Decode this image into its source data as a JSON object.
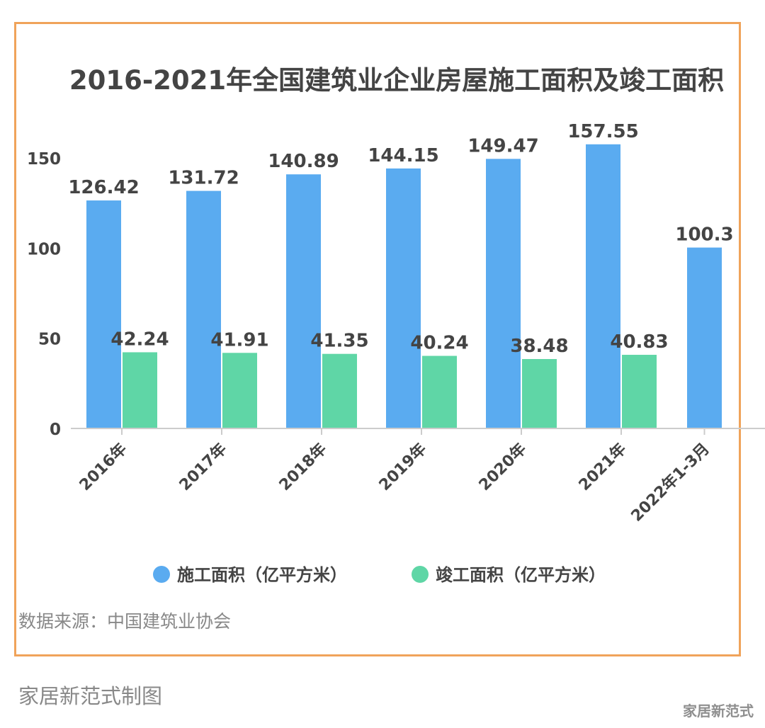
{
  "chart_data": {
    "type": "bar",
    "title": "2016-2021年全国建筑业企业房屋施工面积及竣工面积",
    "categories": [
      "2016年",
      "2017年",
      "2018年",
      "2019年",
      "2020年",
      "2021年",
      "2022年1-3月"
    ],
    "series": [
      {
        "name": "施工面积（亿平方米）",
        "color": "#5aabf0",
        "values": [
          126.42,
          131.72,
          140.89,
          144.15,
          149.47,
          157.55,
          100.3
        ],
        "labels": [
          "126.42",
          "131.72",
          "140.89",
          "144.15",
          "149.47",
          "157.55",
          "100.3"
        ]
      },
      {
        "name": "竣工面积（亿平方米）",
        "color": "#5fd6a6",
        "values": [
          42.24,
          41.91,
          41.35,
          40.24,
          38.48,
          40.83,
          null
        ],
        "labels": [
          "42.24",
          "41.91",
          "41.35",
          "40.24",
          "38.48",
          "40.83",
          ""
        ]
      }
    ],
    "yticks": [
      "0",
      "50",
      "100",
      "150"
    ],
    "ylim": [
      0,
      150
    ],
    "xlabel": "",
    "ylabel": "",
    "grid": false,
    "legend_position": "bottom"
  },
  "source_note": "数据来源：中国建筑业协会",
  "footer_credit": "家居新范式制图",
  "watermark": "家居新范式"
}
